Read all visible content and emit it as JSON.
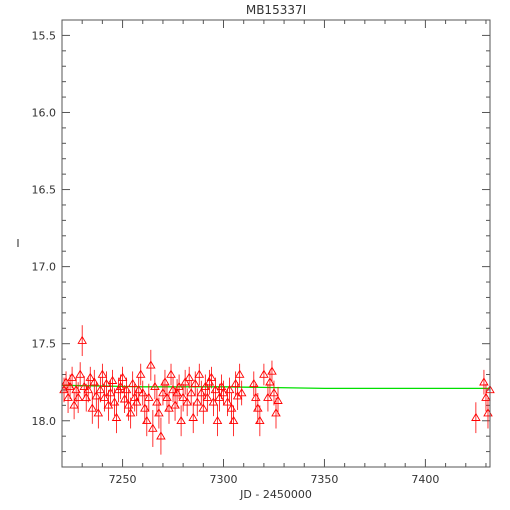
{
  "chart_data": {
    "type": "scatter",
    "title": "MB15337I",
    "xlabel": "JD - 2450000",
    "ylabel": "I",
    "xlim": [
      7220,
      7432
    ],
    "ylim": [
      18.3,
      15.4
    ],
    "y_inverted": true,
    "grid": false,
    "x_ticks": [
      7250,
      7300,
      7350,
      7400
    ],
    "y_ticks": [
      15.5,
      16.0,
      16.5,
      17.0,
      17.5,
      18.0
    ],
    "x_tick_labels": [
      "7250",
      "7300",
      "7350",
      "7400"
    ],
    "y_tick_labels": [
      "15.5",
      "16.0",
      "16.5",
      "17.0",
      "17.5",
      "18.0"
    ],
    "marker": "triangle",
    "colors": {
      "points": "#ff0000",
      "model": "#00e000",
      "axes": "#555555"
    },
    "series": [
      {
        "type": "scatter",
        "x": [
          7221,
          7222,
          7223,
          7224,
          7225,
          7226,
          7227,
          7228,
          7229,
          7230,
          7231,
          7232,
          7233,
          7234,
          7235,
          7236,
          7237,
          7238,
          7239,
          7240,
          7241,
          7242,
          7243,
          7244,
          7245,
          7246,
          7247,
          7248,
          7249,
          7250,
          7251,
          7252,
          7253,
          7254,
          7255,
          7256,
          7257,
          7258,
          7259,
          7260,
          7261,
          7262,
          7263,
          7264,
          7265,
          7266,
          7267,
          7268,
          7269,
          7270,
          7271,
          7272,
          7273,
          7274,
          7275,
          7276,
          7277,
          7278,
          7279,
          7280,
          7281,
          7282,
          7283,
          7284,
          7285,
          7286,
          7287,
          7288,
          7289,
          7290,
          7291,
          7292,
          7293,
          7294,
          7295,
          7296,
          7297,
          7298,
          7299,
          7300,
          7302,
          7303,
          7304,
          7305,
          7306,
          7307,
          7308,
          7309,
          7315,
          7316,
          7317,
          7318,
          7320,
          7322,
          7323,
          7324,
          7325,
          7326,
          7327,
          7425,
          7429,
          7430,
          7431,
          7432
        ],
        "y": [
          17.8,
          17.75,
          17.85,
          17.78,
          17.72,
          17.9,
          17.8,
          17.85,
          17.7,
          17.48,
          17.78,
          17.85,
          17.8,
          17.72,
          17.92,
          17.75,
          17.84,
          17.95,
          17.8,
          17.7,
          17.85,
          17.76,
          17.9,
          17.82,
          17.74,
          17.88,
          17.98,
          17.8,
          17.78,
          17.72,
          17.86,
          17.8,
          17.9,
          17.95,
          17.76,
          17.85,
          17.88,
          17.8,
          17.7,
          17.82,
          17.92,
          18.0,
          17.85,
          17.64,
          18.05,
          17.78,
          17.88,
          17.95,
          18.1,
          17.82,
          17.75,
          17.85,
          17.92,
          17.7,
          17.8,
          17.9,
          17.82,
          17.78,
          18.0,
          17.85,
          17.75,
          17.88,
          17.72,
          17.82,
          17.98,
          17.76,
          17.88,
          17.7,
          17.82,
          17.92,
          17.78,
          17.85,
          17.75,
          17.72,
          17.88,
          17.8,
          18.0,
          17.85,
          17.78,
          17.82,
          17.88,
          17.8,
          17.92,
          18.0,
          17.76,
          17.84,
          17.7,
          17.82,
          17.76,
          17.85,
          17.92,
          18.0,
          17.7,
          17.85,
          17.75,
          17.68,
          17.82,
          17.95,
          17.87,
          17.98,
          17.75,
          17.85,
          17.95,
          17.8
        ],
        "errors": [
          0.08,
          0.07,
          0.1,
          0.08,
          0.07,
          0.09,
          0.08,
          0.1,
          0.08,
          0.1,
          0.07,
          0.09,
          0.08,
          0.07,
          0.1,
          0.08,
          0.09,
          0.1,
          0.08,
          0.07,
          0.09,
          0.08,
          0.1,
          0.08,
          0.07,
          0.09,
          0.1,
          0.08,
          0.08,
          0.07,
          0.09,
          0.08,
          0.1,
          0.1,
          0.08,
          0.09,
          0.09,
          0.08,
          0.07,
          0.08,
          0.1,
          0.1,
          0.09,
          0.1,
          0.12,
          0.08,
          0.09,
          0.1,
          0.12,
          0.08,
          0.08,
          0.09,
          0.1,
          0.07,
          0.08,
          0.1,
          0.09,
          0.08,
          0.1,
          0.09,
          0.08,
          0.09,
          0.07,
          0.08,
          0.1,
          0.08,
          0.09,
          0.07,
          0.08,
          0.1,
          0.08,
          0.09,
          0.08,
          0.07,
          0.09,
          0.08,
          0.1,
          0.09,
          0.08,
          0.08,
          0.09,
          0.08,
          0.1,
          0.1,
          0.08,
          0.09,
          0.07,
          0.08,
          0.08,
          0.09,
          0.1,
          0.1,
          0.07,
          0.09,
          0.08,
          0.07,
          0.08,
          0.1,
          0.09,
          0.1,
          0.08,
          0.09,
          0.1,
          0.08
        ]
      },
      {
        "type": "line",
        "x": [
          7220,
          7260,
          7300,
          7350,
          7400,
          7432
        ],
        "y": [
          17.77,
          17.78,
          17.78,
          17.79,
          17.79,
          17.79
        ]
      }
    ]
  }
}
